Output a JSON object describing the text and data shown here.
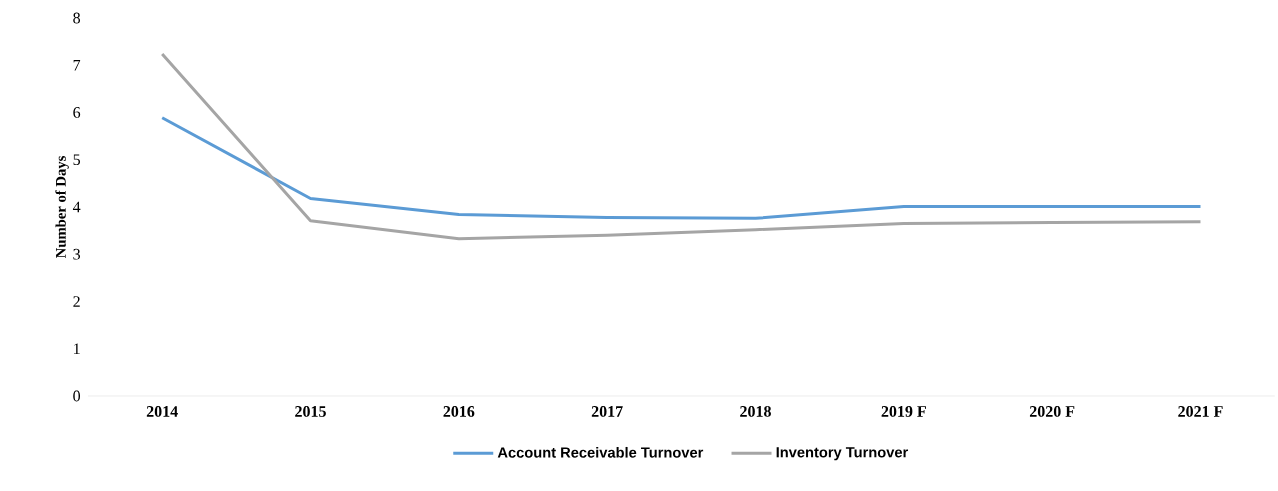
{
  "chart_data": {
    "type": "line",
    "ylabel": "Number of Days",
    "categories": [
      "2014",
      "2015",
      "2016",
      "2017",
      "2018",
      "2019 F",
      "2020 F",
      "2021 F"
    ],
    "series": [
      {
        "name": "Account Receivable Turnover",
        "color": "#5b9bd5",
        "values": [
          5.89,
          4.18,
          3.84,
          3.78,
          3.76,
          4.01,
          4.01,
          4.01
        ]
      },
      {
        "name": "Inventory Turnover",
        "color": "#a5a5a5",
        "values": [
          7.24,
          3.71,
          3.33,
          3.4,
          3.52,
          3.65,
          3.67,
          3.69
        ]
      }
    ],
    "ylim": [
      0,
      8
    ],
    "yticks": [
      0,
      1,
      2,
      3,
      4,
      5,
      6,
      7,
      8
    ],
    "grid": false,
    "legend": "bottom",
    "marker": "none",
    "line_style": "solid"
  }
}
